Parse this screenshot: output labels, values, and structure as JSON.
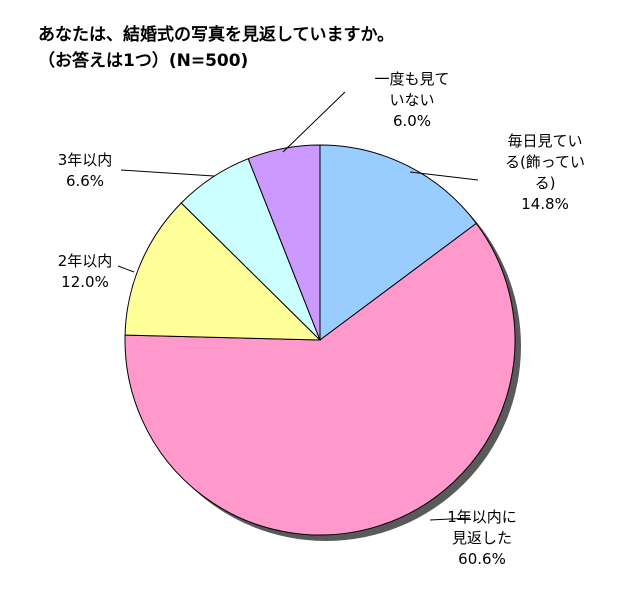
{
  "chart_data": {
    "type": "pie",
    "title": "あなたは、結婚式の写真を見返していますか。",
    "subtitle": "（お答えは1つ）(N=500)",
    "slices": [
      {
        "label_lines": [
          "毎日見てい",
          "る(飾ってい",
          "る)"
        ],
        "value": 14.8,
        "value_text": "14.8%",
        "color": "#99ccff"
      },
      {
        "label_lines": [
          "1年以内に",
          "見返した"
        ],
        "value": 60.6,
        "value_text": "60.6%",
        "color": "#ff99cc"
      },
      {
        "label_lines": [
          "2年以内"
        ],
        "value": 12.0,
        "value_text": "12.0%",
        "color": "#ffff99"
      },
      {
        "label_lines": [
          "3年以内"
        ],
        "value": 6.6,
        "value_text": "6.6%",
        "color": "#ccffff"
      },
      {
        "label_lines": [
          "一度も見て",
          "いない"
        ],
        "value": 6.0,
        "value_text": "6.0%",
        "color": "#cc99ff"
      }
    ]
  }
}
